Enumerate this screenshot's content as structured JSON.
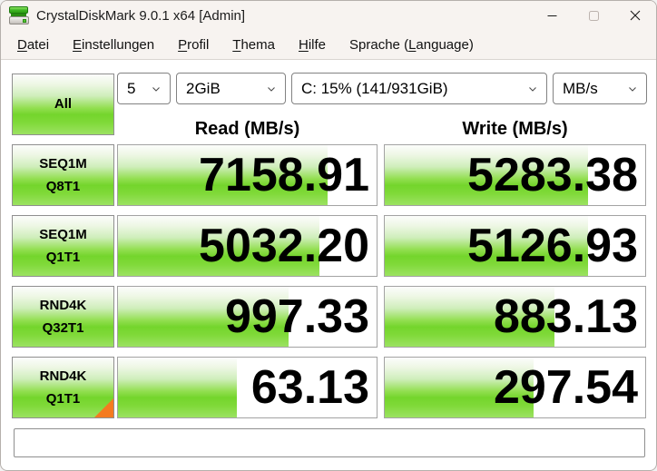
{
  "window": {
    "title": "CrystalDiskMark 9.0.1 x64 [Admin]"
  },
  "menu": {
    "items": [
      {
        "pre": "",
        "key": "D",
        "post": "atei"
      },
      {
        "pre": "",
        "key": "E",
        "post": "instellungen"
      },
      {
        "pre": "",
        "key": "P",
        "post": "rofil"
      },
      {
        "pre": "",
        "key": "T",
        "post": "hema"
      },
      {
        "pre": "",
        "key": "H",
        "post": "ilfe"
      },
      {
        "pre": "Sprache (",
        "key": "L",
        "post": "anguage)"
      }
    ]
  },
  "controls": {
    "all_label": "All",
    "test_count": "5",
    "test_size": "2GiB",
    "drive": "C: 15% (141/931GiB)",
    "unit": "MB/s"
  },
  "headers": {
    "read": "Read (MB/s)",
    "write": "Write (MB/s)"
  },
  "rows": [
    {
      "label1": "SEQ1M",
      "label2": "Q8T1",
      "read": "7158.91",
      "write": "5283.38",
      "read_fill": 81,
      "write_fill": 78
    },
    {
      "label1": "SEQ1M",
      "label2": "Q1T1",
      "read": "5032.20",
      "write": "5126.93",
      "read_fill": 78,
      "write_fill": 78
    },
    {
      "label1": "RND4K",
      "label2": "Q32T1",
      "read": "997.33",
      "write": "883.13",
      "read_fill": 66,
      "write_fill": 65
    },
    {
      "label1": "RND4K",
      "label2": "Q1T1",
      "read": "63.13",
      "write": "297.54",
      "read_fill": 46,
      "write_fill": 57
    }
  ],
  "footer": {
    "comment": ""
  },
  "colors": {
    "accent_green": "#74d52c",
    "marker_orange": "#f47b20",
    "titlebar_bg": "#f7f3f0"
  }
}
